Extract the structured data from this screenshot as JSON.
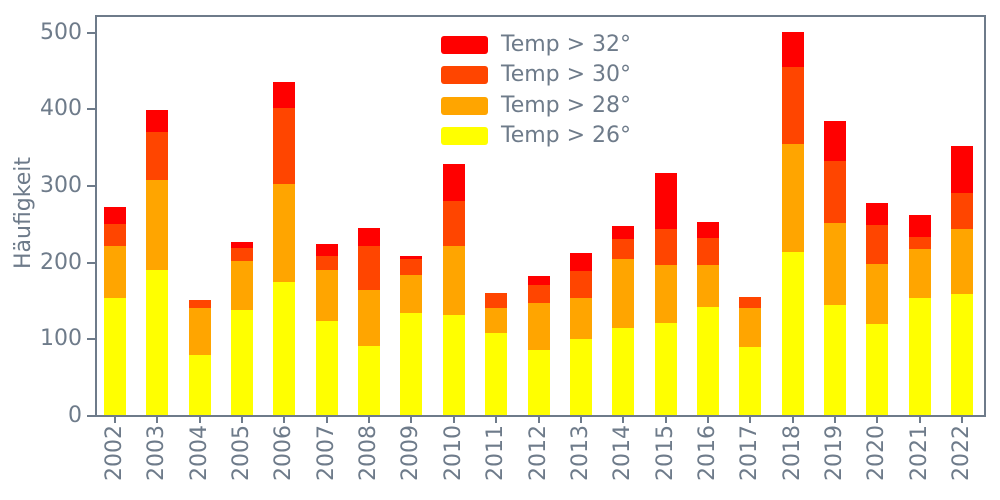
{
  "axis": {
    "text_color": "#6e7b8a",
    "spine_color": "#6e7b8a",
    "background": "#ffffff"
  },
  "chart_data": {
    "type": "bar",
    "stacked": true,
    "title": "",
    "xlabel": "",
    "ylabel": "Häufigkeit",
    "categories": [
      "2002",
      "2003",
      "2004",
      "2005",
      "2006",
      "2007",
      "2008",
      "2009",
      "2010",
      "2011",
      "2012",
      "2013",
      "2014",
      "2015",
      "2016",
      "2017",
      "2018",
      "2019",
      "2020",
      "2021",
      "2022"
    ],
    "series": [
      {
        "name": "Temp > 26°",
        "color": "#ffff00",
        "values": [
          153,
          189,
          78,
          137,
          174,
          123,
          90,
          133,
          130,
          107,
          85,
          99,
          113,
          120,
          141,
          89,
          213,
          143,
          118,
          152,
          158
        ]
      },
      {
        "name": "Temp > 28°",
        "color": "#ffa500",
        "values": [
          67,
          117,
          62,
          64,
          127,
          66,
          73,
          49,
          90,
          33,
          61,
          53,
          91,
          76,
          55,
          50,
          140,
          108,
          79,
          64,
          85
        ]
      },
      {
        "name": "Temp > 30°",
        "color": "#ff4500",
        "values": [
          29,
          63,
          10,
          17,
          100,
          19,
          57,
          22,
          59,
          19,
          24,
          36,
          25,
          47,
          35,
          15,
          101,
          80,
          51,
          16,
          46
        ]
      },
      {
        "name": "Temp > 32°",
        "color": "#ff0000",
        "values": [
          22,
          29,
          0,
          8,
          33,
          15,
          24,
          4,
          48,
          0,
          11,
          23,
          18,
          73,
          21,
          0,
          45,
          53,
          28,
          29,
          62
        ]
      }
    ],
    "totals": [
      271,
      398,
      150,
      226,
      434,
      223,
      244,
      208,
      327,
      159,
      181,
      211,
      247,
      316,
      252,
      154,
      499,
      384,
      276,
      261,
      351
    ],
    "legend": {
      "position": "upper-center-right",
      "entries": [
        {
          "label": "Temp > 32°",
          "color": "#ff0000"
        },
        {
          "label": "Temp > 30°",
          "color": "#ff4500"
        },
        {
          "label": "Temp > 28°",
          "color": "#ffa500"
        },
        {
          "label": "Temp > 26°",
          "color": "#ffff00"
        }
      ]
    },
    "yticks": [
      0,
      100,
      200,
      300,
      400,
      500
    ],
    "ylim": [
      0,
      524
    ],
    "grid": false
  }
}
